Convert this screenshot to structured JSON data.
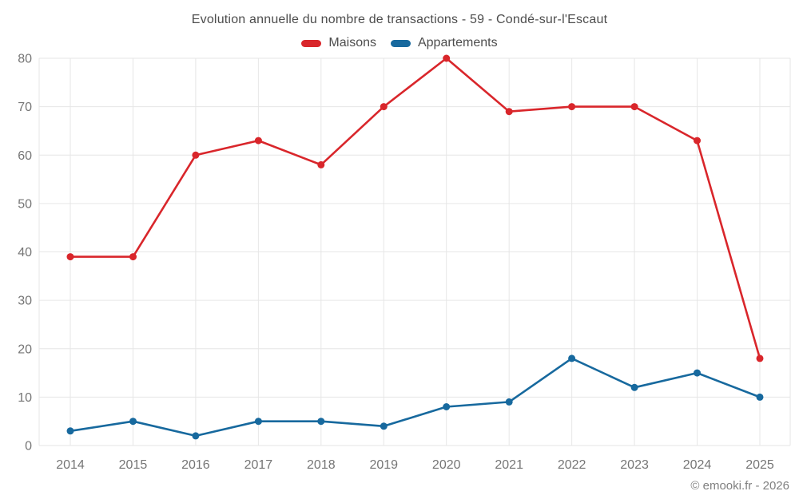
{
  "footer_credit": "© emooki.fr - 2026",
  "chart_data": {
    "type": "line",
    "title": "Evolution annuelle du nombre de transactions - 59 - Condé-sur-l'Escaut",
    "categories": [
      "2014",
      "2015",
      "2016",
      "2017",
      "2018",
      "2019",
      "2020",
      "2021",
      "2022",
      "2023",
      "2024",
      "2025"
    ],
    "series": [
      {
        "name": "Maisons",
        "color": "#d9262b",
        "values": [
          39,
          39,
          60,
          63,
          58,
          70,
          80,
          69,
          70,
          70,
          63,
          18
        ]
      },
      {
        "name": "Appartements",
        "color": "#17699e",
        "values": [
          3,
          5,
          2,
          5,
          5,
          4,
          8,
          9,
          18,
          12,
          15,
          10
        ]
      }
    ],
    "xlabel": "",
    "ylabel": "",
    "ylim": [
      0,
      80
    ],
    "ytick_step": 10,
    "yticks": [
      0,
      10,
      20,
      30,
      40,
      50,
      60,
      70,
      80
    ],
    "grid": true,
    "legend_position": "top",
    "grid_color": "#e6e6e6",
    "tick_label_color": "#757575",
    "title_color": "#4d4d4d",
    "marker": "circle"
  }
}
